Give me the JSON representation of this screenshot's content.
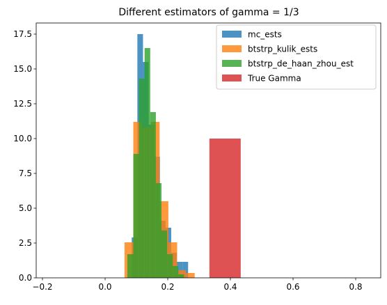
{
  "chart_data": {
    "type": "bar",
    "title": "Different estimators of gamma = 1/3",
    "xlabel": "",
    "ylabel": "",
    "xlim": [
      -0.22,
      0.88
    ],
    "ylim": [
      0,
      18.3
    ],
    "grid": false,
    "legend_position": "top-right",
    "x_ticks": [
      -0.2,
      0.0,
      0.2,
      0.4,
      0.6,
      0.8
    ],
    "x_tick_labels": [
      "−0.2",
      "0.0",
      "0.2",
      "0.4",
      "0.6",
      "0.8"
    ],
    "y_ticks": [
      0.0,
      2.5,
      5.0,
      7.5,
      10.0,
      12.5,
      15.0,
      17.5
    ],
    "y_tick_labels": [
      "0.0",
      "2.5",
      "5.0",
      "7.5",
      "10.0",
      "12.5",
      "15.0",
      "17.5"
    ],
    "series": [
      {
        "name": "mc_ests",
        "color": "#1f77b4",
        "opacity": 0.8,
        "bins": [
          {
            "x0": 0.085,
            "x1": 0.103,
            "height": 2.9
          },
          {
            "x0": 0.103,
            "x1": 0.121,
            "height": 17.5
          },
          {
            "x0": 0.121,
            "x1": 0.139,
            "height": 15.5
          },
          {
            "x0": 0.139,
            "x1": 0.157,
            "height": 11.0
          },
          {
            "x0": 0.157,
            "x1": 0.175,
            "height": 8.7
          },
          {
            "x0": 0.175,
            "x1": 0.193,
            "height": 4.1
          },
          {
            "x0": 0.193,
            "x1": 0.211,
            "height": 3.6
          },
          {
            "x0": 0.211,
            "x1": 0.229,
            "height": 1.8
          },
          {
            "x0": 0.229,
            "x1": 0.247,
            "height": 1.15
          },
          {
            "x0": 0.247,
            "x1": 0.265,
            "height": 1.15
          }
        ]
      },
      {
        "name": "btstrp_kulik_ests",
        "color": "#ff7f0e",
        "opacity": 0.8,
        "bins": [
          {
            "x0": 0.062,
            "x1": 0.09,
            "height": 2.55
          },
          {
            "x0": 0.09,
            "x1": 0.118,
            "height": 11.2
          },
          {
            "x0": 0.118,
            "x1": 0.146,
            "height": 10.8
          },
          {
            "x0": 0.146,
            "x1": 0.174,
            "height": 11.2
          },
          {
            "x0": 0.174,
            "x1": 0.202,
            "height": 5.5
          },
          {
            "x0": 0.202,
            "x1": 0.23,
            "height": 2.55
          },
          {
            "x0": 0.23,
            "x1": 0.258,
            "height": 0.55
          },
          {
            "x0": 0.258,
            "x1": 0.286,
            "height": 0.35
          }
        ]
      },
      {
        "name": "btstrp_de_haan_zhou_est",
        "color": "#2ca02c",
        "opacity": 0.8,
        "bins": [
          {
            "x0": 0.071,
            "x1": 0.09,
            "height": 1.7
          },
          {
            "x0": 0.09,
            "x1": 0.108,
            "height": 8.9
          },
          {
            "x0": 0.108,
            "x1": 0.126,
            "height": 14.3
          },
          {
            "x0": 0.126,
            "x1": 0.144,
            "height": 16.5
          },
          {
            "x0": 0.144,
            "x1": 0.162,
            "height": 11.9
          },
          {
            "x0": 0.162,
            "x1": 0.18,
            "height": 6.8
          },
          {
            "x0": 0.18,
            "x1": 0.198,
            "height": 3.4
          },
          {
            "x0": 0.198,
            "x1": 0.216,
            "height": 1.7
          },
          {
            "x0": 0.216,
            "x1": 0.234,
            "height": 0.85
          },
          {
            "x0": 0.234,
            "x1": 0.252,
            "height": 0.25
          }
        ]
      },
      {
        "name": "True Gamma",
        "color": "#d62728",
        "opacity": 0.8,
        "bins": [
          {
            "x0": 0.333,
            "x1": 0.433,
            "height": 10.0
          }
        ]
      }
    ]
  }
}
